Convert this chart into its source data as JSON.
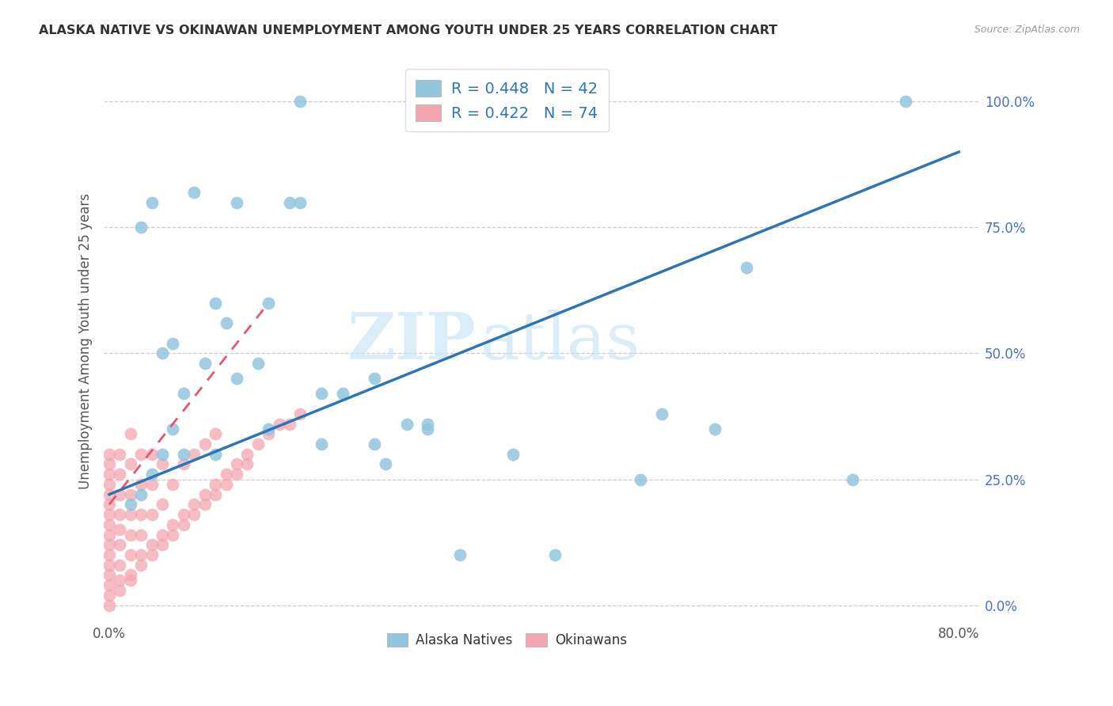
{
  "title": "ALASKA NATIVE VS OKINAWAN UNEMPLOYMENT AMONG YOUTH UNDER 25 YEARS CORRELATION CHART",
  "source": "Source: ZipAtlas.com",
  "ylabel": "Unemployment Among Youth under 25 years",
  "xlim": [
    -0.005,
    0.82
  ],
  "ylim": [
    -0.03,
    1.08
  ],
  "alaska_R": 0.448,
  "alaska_N": 42,
  "okinawa_R": 0.422,
  "okinawa_N": 74,
  "alaska_color": "#92C5DE",
  "okinawa_color": "#F4A6B0",
  "alaska_line_color": "#2E75B6",
  "okinawa_line_color": "#E8546A",
  "watermark_zip": "ZIP",
  "watermark_atlas": "atlas",
  "ytick_vals": [
    0.0,
    0.25,
    0.5,
    0.75,
    1.0
  ],
  "ytick_labels": [
    "0.0%",
    "25.0%",
    "50.0%",
    "75.0%",
    "100.0%"
  ],
  "xtick_vals": [
    0.0,
    0.1,
    0.2,
    0.3,
    0.4,
    0.5,
    0.6,
    0.7,
    0.8
  ],
  "xtick_labels": [
    "0.0%",
    "",
    "",
    "",
    "",
    "",
    "",
    "",
    "80.0%"
  ],
  "alaska_scatter_x": [
    0.02,
    0.03,
    0.04,
    0.05,
    0.06,
    0.07,
    0.08,
    0.09,
    0.1,
    0.11,
    0.12,
    0.14,
    0.15,
    0.17,
    0.18,
    0.2,
    0.22,
    0.25,
    0.26,
    0.28,
    0.3,
    0.33,
    0.38,
    0.42,
    0.5,
    0.52,
    0.57,
    0.6,
    0.7,
    0.75,
    0.03,
    0.04,
    0.05,
    0.06,
    0.07,
    0.1,
    0.12,
    0.15,
    0.2,
    0.25,
    0.3,
    0.18
  ],
  "alaska_scatter_y": [
    0.2,
    0.22,
    0.8,
    0.5,
    0.52,
    0.3,
    0.82,
    0.48,
    0.6,
    0.56,
    0.8,
    0.48,
    0.6,
    0.8,
    0.8,
    0.42,
    0.42,
    0.45,
    0.28,
    0.36,
    0.36,
    0.1,
    0.3,
    0.1,
    0.25,
    0.38,
    0.35,
    0.67,
    0.25,
    1.0,
    0.75,
    0.26,
    0.3,
    0.35,
    0.42,
    0.3,
    0.45,
    0.35,
    0.32,
    0.32,
    0.35,
    1.0
  ],
  "okinawa_scatter_x": [
    0.0,
    0.0,
    0.0,
    0.0,
    0.0,
    0.0,
    0.0,
    0.0,
    0.0,
    0.0,
    0.0,
    0.0,
    0.0,
    0.0,
    0.0,
    0.01,
    0.01,
    0.01,
    0.01,
    0.01,
    0.01,
    0.01,
    0.01,
    0.02,
    0.02,
    0.02,
    0.02,
    0.02,
    0.02,
    0.02,
    0.03,
    0.03,
    0.03,
    0.03,
    0.03,
    0.04,
    0.04,
    0.04,
    0.04,
    0.05,
    0.05,
    0.05,
    0.06,
    0.06,
    0.07,
    0.07,
    0.08,
    0.08,
    0.09,
    0.09,
    0.1,
    0.1,
    0.11,
    0.12,
    0.13,
    0.14,
    0.15,
    0.16,
    0.17,
    0.18,
    0.0,
    0.01,
    0.02,
    0.03,
    0.04,
    0.05,
    0.06,
    0.07,
    0.08,
    0.09,
    0.1,
    0.11,
    0.12,
    0.13
  ],
  "okinawa_scatter_y": [
    0.02,
    0.04,
    0.06,
    0.08,
    0.1,
    0.12,
    0.14,
    0.16,
    0.18,
    0.2,
    0.22,
    0.24,
    0.26,
    0.28,
    0.3,
    0.05,
    0.08,
    0.12,
    0.15,
    0.18,
    0.22,
    0.26,
    0.3,
    0.06,
    0.1,
    0.14,
    0.18,
    0.22,
    0.28,
    0.34,
    0.1,
    0.14,
    0.18,
    0.24,
    0.3,
    0.12,
    0.18,
    0.24,
    0.3,
    0.14,
    0.2,
    0.28,
    0.16,
    0.24,
    0.18,
    0.28,
    0.2,
    0.3,
    0.22,
    0.32,
    0.24,
    0.34,
    0.26,
    0.28,
    0.3,
    0.32,
    0.34,
    0.36,
    0.36,
    0.38,
    0.0,
    0.03,
    0.05,
    0.08,
    0.1,
    0.12,
    0.14,
    0.16,
    0.18,
    0.2,
    0.22,
    0.24,
    0.26,
    0.28
  ],
  "alaska_line_x": [
    0.0,
    0.8
  ],
  "alaska_line_y": [
    0.22,
    0.9
  ],
  "okinawa_line_x": [
    0.0,
    0.15
  ],
  "okinawa_line_y": [
    0.2,
    0.6
  ],
  "bottom_legend_labels": [
    "Alaska Natives",
    "Okinawans"
  ],
  "legend_label_color": "#2E75B6",
  "title_color": "#333333",
  "grid_color": "#CCCCCC"
}
